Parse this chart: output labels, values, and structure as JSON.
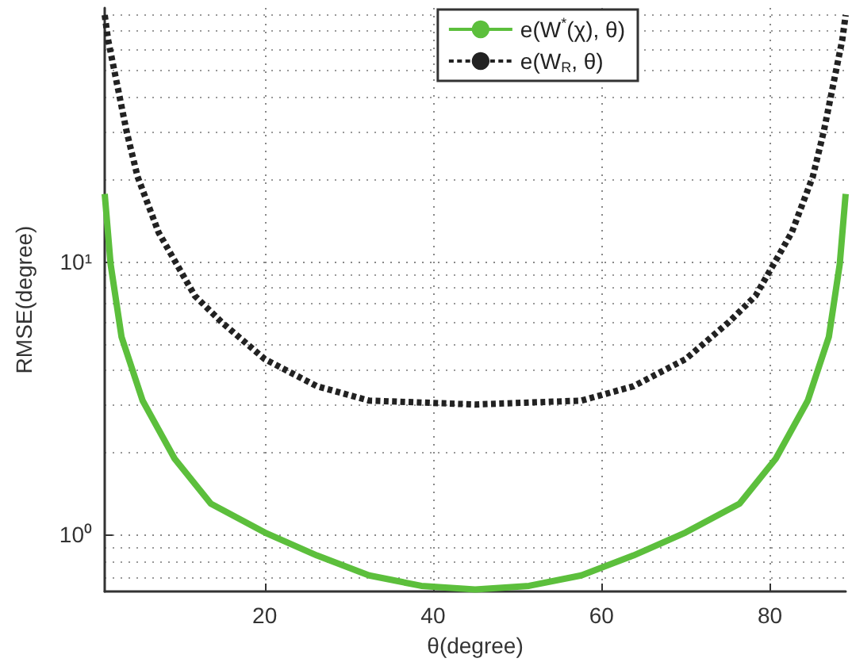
{
  "chart_data": {
    "type": "line",
    "xlabel": "θ(degree)",
    "ylabel": "RMSE(degree)",
    "log": "y",
    "grid": true,
    "legend": "top right",
    "marker": "none",
    "xlim": [
      1,
      89
    ],
    "xticks": [
      20,
      40,
      60,
      80
    ],
    "ylim": [
      0.62,
      85
    ],
    "yticks": [
      {
        "value": 1,
        "label": "10⁰"
      },
      {
        "value": 10,
        "label": "10¹"
      }
    ],
    "series": [
      {
        "name": "e(W$^{*}$(χ), θ)",
        "color": "#5cbf3c",
        "line_style": "solid",
        "x": [
          1,
          1.7,
          3,
          5.5,
          9.3,
          13.6,
          20,
          26.2,
          32.4,
          38.6,
          45,
          51.4,
          57.6,
          63.8,
          70,
          76.4,
          80.7,
          84.5,
          87,
          88.3,
          89
        ],
        "values": [
          17.7,
          9.8,
          5.3,
          3.1,
          1.9,
          1.3,
          1.02,
          0.84,
          0.71,
          0.65,
          0.63,
          0.65,
          0.71,
          0.84,
          1.02,
          1.3,
          1.9,
          3.1,
          5.3,
          9.8,
          17.7
        ]
      },
      {
        "name": "e(W$_{R}$, θ)",
        "color": "#222222",
        "line_style": "dashed",
        "x": [
          1,
          1.4,
          3.6,
          4.9,
          7.4,
          11.7,
          14.9,
          20,
          26.2,
          32.4,
          45,
          57.6,
          63.8,
          70,
          75.1,
          78.3,
          82.6,
          85.1,
          86.4,
          88.6,
          89
        ],
        "values": [
          80,
          65,
          30,
          20.5,
          12.8,
          7.5,
          6.0,
          4.4,
          3.5,
          3.1,
          3.0,
          3.1,
          3.5,
          4.4,
          6.0,
          7.5,
          12.8,
          20.5,
          30,
          65,
          80
        ]
      }
    ]
  }
}
